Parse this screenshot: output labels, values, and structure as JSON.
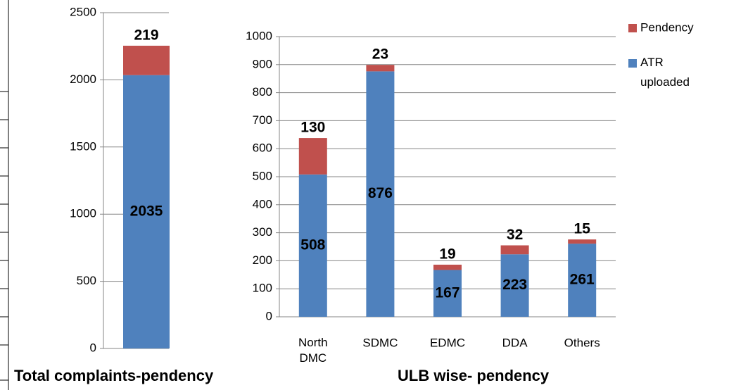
{
  "chart_data": [
    {
      "type": "stacked_bar",
      "title": "Total complaints-pendency",
      "categories": [
        null
      ],
      "series": [
        {
          "color": "#4f81bd",
          "values": [
            2035
          ]
        },
        {
          "color": "#c0504d",
          "values": [
            219
          ]
        }
      ],
      "ylim": [
        0,
        2500
      ],
      "yticks": [
        0,
        500,
        1000,
        1500,
        2000,
        2500
      ],
      "grid": false
    },
    {
      "type": "stacked_bar",
      "title": "ULB wise- pendency",
      "categories": [
        "North DMC",
        "SDMC",
        "EDMC",
        "DDA",
        "Others"
      ],
      "series": [
        {
          "name": "ATR uploaded",
          "color": "#4f81bd",
          "values": [
            508,
            876,
            167,
            223,
            261
          ]
        },
        {
          "name": "Pendency",
          "color": "#c0504d",
          "values": [
            130,
            23,
            19,
            32,
            15
          ]
        }
      ],
      "ylim": [
        0,
        1000
      ],
      "yticks": [
        0,
        100,
        200,
        300,
        400,
        500,
        600,
        700,
        800,
        900,
        1000
      ],
      "grid": true,
      "legend": "right"
    }
  ]
}
